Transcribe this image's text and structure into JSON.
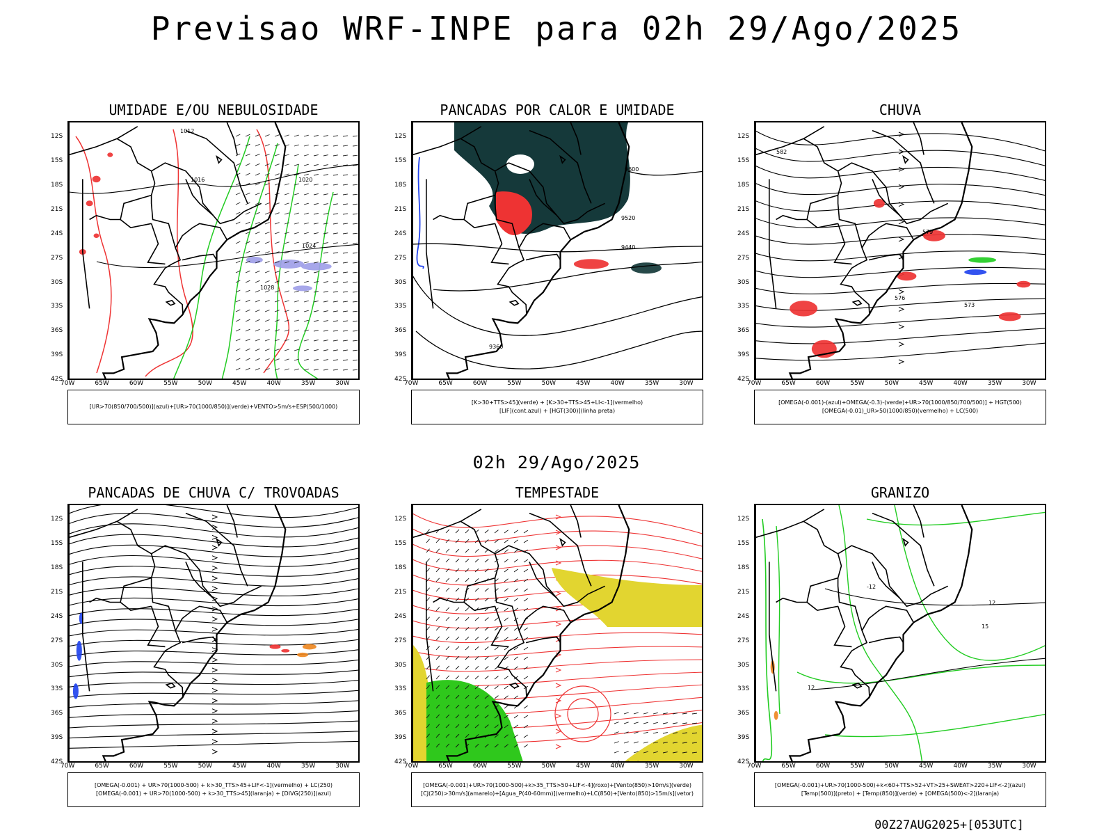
{
  "title": "Previsao WRF-INPE  para 02h 29/Ago/2025",
  "subtitle": "02h 29/Ago/2025",
  "footer": "00Z27AUG2025+[053UTC]",
  "lat_labels": [
    "12S",
    "15S",
    "18S",
    "21S",
    "24S",
    "27S",
    "30S",
    "33S",
    "36S",
    "39S",
    "42S"
  ],
  "lon_labels": [
    "70W",
    "65W",
    "60W",
    "55W",
    "50W",
    "45W",
    "40W",
    "35W",
    "30W"
  ],
  "panels": [
    {
      "title": "UMIDADE E/OU NEBULOSIDADE",
      "legend": [
        "[UR>70(850/700/500)](azul)+[UR>70(1000/850)](verde)+VENTO>5m/s+ESP(500/1000)"
      ],
      "contour_labels": [
        "1012",
        "1016",
        "1020",
        "1024",
        "1028"
      ]
    },
    {
      "title": "PANCADAS POR CALOR E UMIDADE",
      "legend": [
        "[K>30+TTS>45](verde) + [K>30+TTS>45+LI<-1](vermelho)",
        "[LIF](cont.azul) + [HGT(300)](linha preta)"
      ],
      "contour_labels": [
        "9600",
        "9520",
        "9440",
        "9360"
      ]
    },
    {
      "title": "CHUVA",
      "legend": [
        "[OMEGA(-0.001)-(azul)+OMEGA(-0.3)-(verde)+UR>70(1000/850/700/500)] + HGT(500)",
        "[OMEGA(-0.01)_UR>50(1000/850)(vermelho) + LC(500)"
      ],
      "contour_labels": [
        "582",
        "579",
        "576",
        "573"
      ]
    },
    {
      "title": "PANCADAS DE CHUVA C/ TROVOADAS",
      "legend": [
        "[OMEGA(-0.001) + UR>70(1000-500) + k>30_TTS>45+LIF<-1](vermelho) + LC(250)",
        "[OMEGA(-0.001) + UR>70(1000-500) + k>30_TTS>45](laranja) + [DIVG(250)](azul)"
      ],
      "contour_labels": []
    },
    {
      "title": "TEMPESTADE",
      "legend": [
        "[OMEGA(-0.001)+UR>70(1000-500)+k>35_TTS>50+LIF<-4](roxo)+[Vento(850)>10m/s](verde)",
        "[CJ(250)>30m/s](amarelo)+[Agua_P(40-60mm)](vermelho)+LC(850)+[Vento(850)>15m/s](vetor)"
      ],
      "contour_labels": []
    },
    {
      "title": "GRANIZO",
      "legend": [
        "[OMEGA(-0.001)+UR>70(1000-500)+k<60+TTS>52+VT>25+SWEAT>220+LIF<-2](azul)",
        "[Temp(500)](preto) + [Temp(850)](verde) + [OMEGA(500)<-2](laranja)"
      ],
      "contour_labels": [
        "-12",
        "12",
        "15"
      ]
    }
  ],
  "colors": {
    "red": "#ee3333",
    "green": "#22cc22",
    "blue": "#2244ee",
    "darkteal": "#15393a",
    "lavender": "#9f9fe8",
    "yellow": "#e2d530",
    "brightgreen": "#2fc81c",
    "orange": "#ee8822"
  }
}
